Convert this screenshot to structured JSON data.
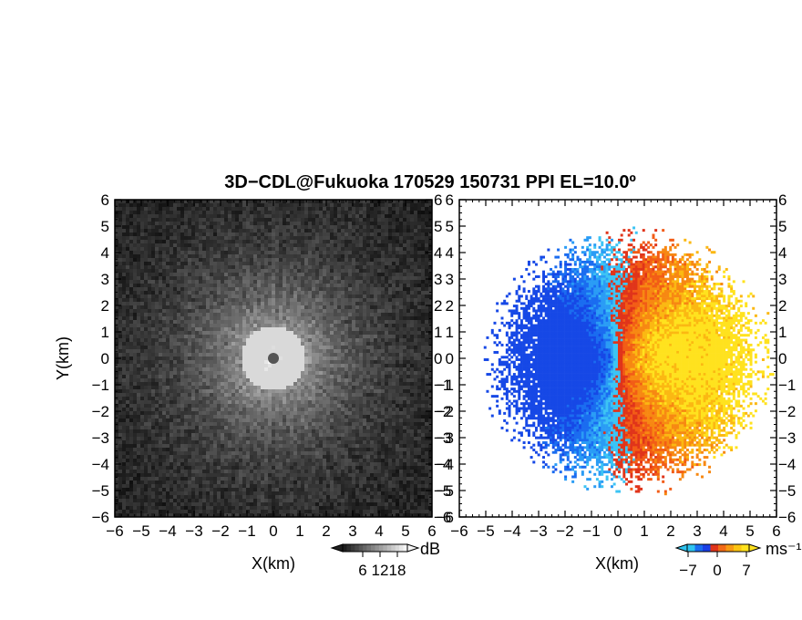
{
  "chart_data": [
    {
      "type": "heatmap",
      "title": "3D−CDL@Fukuoka 170529 150731 PPI EL=10.0º",
      "xlabel": "X(km)",
      "ylabel": "Y(km)",
      "xlim": [
        -6,
        6
      ],
      "ylim": [
        -6,
        6
      ],
      "xticks": [
        "−6",
        "−5",
        "−4",
        "−3",
        "−2",
        "−1",
        "0",
        "1",
        "2",
        "3",
        "4",
        "5",
        "6"
      ],
      "yticks": [
        "6",
        "5",
        "4",
        "3",
        "2",
        "1",
        "0",
        "−1",
        "−2",
        "−3",
        "−4",
        "−5",
        "−6"
      ],
      "colormap": "grayscale",
      "colorbar": {
        "label": "dB",
        "ticks": [
          "6",
          "12",
          "18"
        ],
        "range": [
          6,
          18
        ]
      },
      "grid": false
    },
    {
      "type": "heatmap",
      "xlabel": "X(km)",
      "xlim": [
        -6,
        6
      ],
      "ylim": [
        -6,
        6
      ],
      "xticks": [
        "−6",
        "−5",
        "−4",
        "−3",
        "−2",
        "−1",
        "0",
        "1",
        "2",
        "3",
        "4",
        "5",
        "6"
      ],
      "yticks": [
        "6",
        "5",
        "4",
        "3",
        "2",
        "1",
        "0",
        "−1",
        "−2",
        "−3",
        "−4",
        "−5",
        "−6"
      ],
      "colormap": "blue-red-yellow",
      "colorbar": {
        "label": "ms⁻¹",
        "ticks": [
          "−7",
          "0",
          "7"
        ],
        "range": [
          -7,
          7
        ]
      },
      "grid": false
    }
  ]
}
